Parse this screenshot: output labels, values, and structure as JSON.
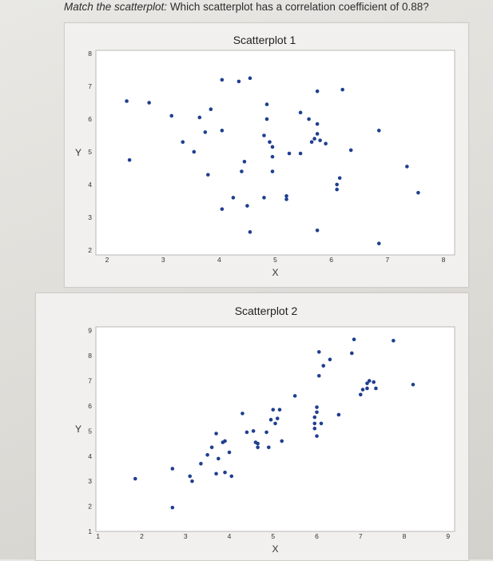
{
  "question": {
    "lead": "Match the scatterplot:",
    "rest": " Which scatterplot has a correlation coefficient of 0.88?"
  },
  "chart_data": [
    {
      "type": "scatter",
      "title": "Scatterplot 1",
      "xlabel": "X",
      "ylabel": "Y",
      "xlim": [
        1.8,
        8.2
      ],
      "ylim": [
        1.85,
        8.1
      ],
      "xticks": [
        2,
        3,
        4,
        5,
        6,
        7,
        8
      ],
      "yticks": [
        2,
        3,
        4,
        5,
        6,
        7,
        8
      ],
      "color": "#1f3f8f",
      "points": [
        [
          2.35,
          6.55
        ],
        [
          2.4,
          4.75
        ],
        [
          2.75,
          6.5
        ],
        [
          3.15,
          6.1
        ],
        [
          3.35,
          5.3
        ],
        [
          3.55,
          5.0
        ],
        [
          3.65,
          6.05
        ],
        [
          3.75,
          5.6
        ],
        [
          3.8,
          4.3
        ],
        [
          3.85,
          6.3
        ],
        [
          4.05,
          5.65
        ],
        [
          4.05,
          7.2
        ],
        [
          4.05,
          3.25
        ],
        [
          4.25,
          3.6
        ],
        [
          4.35,
          7.15
        ],
        [
          4.4,
          4.4
        ],
        [
          4.45,
          4.7
        ],
        [
          4.5,
          3.35
        ],
        [
          4.55,
          7.25
        ],
        [
          4.55,
          2.55
        ],
        [
          4.8,
          3.6
        ],
        [
          4.8,
          5.5
        ],
        [
          4.85,
          6.45
        ],
        [
          4.85,
          6.0
        ],
        [
          4.9,
          5.3
        ],
        [
          4.95,
          4.4
        ],
        [
          4.95,
          4.85
        ],
        [
          4.95,
          5.15
        ],
        [
          5.2,
          3.55
        ],
        [
          5.2,
          3.65
        ],
        [
          5.25,
          4.95
        ],
        [
          5.45,
          4.95
        ],
        [
          5.45,
          6.2
        ],
        [
          5.6,
          6.0
        ],
        [
          5.65,
          5.3
        ],
        [
          5.7,
          5.4
        ],
        [
          5.75,
          6.85
        ],
        [
          5.75,
          5.85
        ],
        [
          5.75,
          5.55
        ],
        [
          5.8,
          5.35
        ],
        [
          5.75,
          2.6
        ],
        [
          5.9,
          5.25
        ],
        [
          6.1,
          3.85
        ],
        [
          6.1,
          4.0
        ],
        [
          6.15,
          4.2
        ],
        [
          6.2,
          6.9
        ],
        [
          6.35,
          5.05
        ],
        [
          6.85,
          5.65
        ],
        [
          6.85,
          2.2
        ],
        [
          7.35,
          4.55
        ],
        [
          7.55,
          3.75
        ]
      ]
    },
    {
      "type": "scatter",
      "title": "Scatterplot 2",
      "xlabel": "X",
      "ylabel": "Y",
      "xlim": [
        0.95,
        9.15
      ],
      "ylim": [
        1.0,
        9.15
      ],
      "xticks": [
        1,
        2,
        3,
        4,
        5,
        6,
        7,
        8,
        9
      ],
      "yticks": [
        1,
        2,
        3,
        4,
        5,
        6,
        7,
        8,
        9
      ],
      "color": "#1f3f8f",
      "points": [
        [
          1.85,
          3.1
        ],
        [
          2.7,
          1.95
        ],
        [
          2.7,
          3.5
        ],
        [
          3.1,
          3.2
        ],
        [
          3.15,
          3.0
        ],
        [
          3.35,
          3.7
        ],
        [
          3.5,
          4.05
        ],
        [
          3.6,
          4.35
        ],
        [
          3.7,
          4.9
        ],
        [
          3.7,
          3.3
        ],
        [
          3.75,
          3.9
        ],
        [
          3.85,
          4.55
        ],
        [
          3.9,
          4.6
        ],
        [
          3.9,
          3.35
        ],
        [
          4.0,
          4.15
        ],
        [
          4.05,
          3.2
        ],
        [
          4.3,
          5.7
        ],
        [
          4.4,
          4.95
        ],
        [
          4.55,
          5.0
        ],
        [
          4.6,
          4.55
        ],
        [
          4.65,
          4.35
        ],
        [
          4.65,
          4.5
        ],
        [
          4.85,
          4.95
        ],
        [
          4.9,
          4.35
        ],
        [
          4.95,
          5.45
        ],
        [
          5.0,
          5.85
        ],
        [
          5.05,
          5.3
        ],
        [
          5.1,
          5.5
        ],
        [
          5.15,
          5.85
        ],
        [
          5.2,
          4.6
        ],
        [
          5.5,
          6.4
        ],
        [
          5.95,
          5.1
        ],
        [
          5.95,
          5.3
        ],
        [
          5.95,
          5.55
        ],
        [
          6.0,
          5.75
        ],
        [
          6.0,
          5.95
        ],
        [
          6.0,
          4.8
        ],
        [
          6.05,
          7.2
        ],
        [
          6.05,
          8.15
        ],
        [
          6.1,
          5.3
        ],
        [
          6.15,
          7.6
        ],
        [
          6.3,
          7.85
        ],
        [
          6.5,
          5.65
        ],
        [
          6.8,
          8.1
        ],
        [
          6.85,
          8.65
        ],
        [
          7.0,
          6.45
        ],
        [
          7.05,
          6.65
        ],
        [
          7.15,
          6.7
        ],
        [
          7.15,
          6.9
        ],
        [
          7.2,
          7.0
        ],
        [
          7.3,
          6.95
        ],
        [
          7.35,
          6.7
        ],
        [
          7.75,
          8.6
        ],
        [
          8.2,
          6.85
        ]
      ]
    }
  ]
}
